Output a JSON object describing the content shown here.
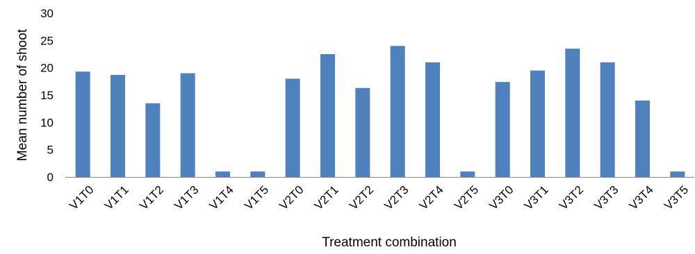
{
  "chart_data": {
    "type": "bar",
    "categories": [
      "V1T0",
      "V1T1",
      "V1T2",
      "V1T3",
      "V1T4",
      "V1T5",
      "V2T0",
      "V2T1",
      "V2T2",
      "V2T3",
      "V2T4",
      "V2T5",
      "V3T0",
      "V3T1",
      "V3T2",
      "V3T3",
      "V3T4",
      "V3T5"
    ],
    "values": [
      19.3,
      18.7,
      13.5,
      19.0,
      1.0,
      1.0,
      18.0,
      22.5,
      16.3,
      24.0,
      21.0,
      1.0,
      17.4,
      19.5,
      23.5,
      21.0,
      14.0,
      1.0
    ],
    "yticks": [
      "0",
      "5",
      "10",
      "15",
      "20",
      "25",
      "30"
    ],
    "ylim": [
      0,
      30
    ],
    "xlabel": "Treatment combination",
    "ylabel": "Mean number of shoot",
    "grid": false,
    "bar_color": "#4f81bd"
  }
}
